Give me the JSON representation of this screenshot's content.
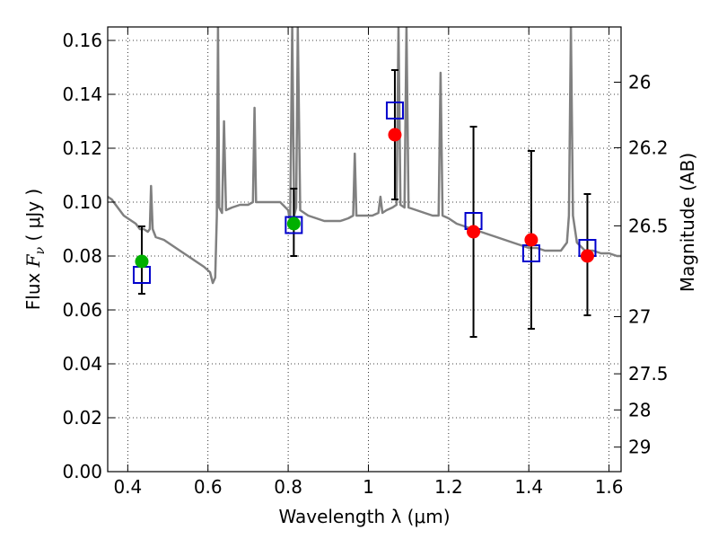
{
  "chart_data": {
    "type": "scatter",
    "title": "",
    "xlabel": "Wavelength  λ (μm)",
    "ylabel_left": {
      "prefix": "Flux ",
      "symbol": "F",
      "subscript": "ν",
      "suffix": "  ( μJy )"
    },
    "ylabel_right": "Magnitude (AB)",
    "xlim": [
      0.35,
      1.63
    ],
    "ylim": [
      0.0,
      0.165
    ],
    "grid": true,
    "grid_style": "dotted",
    "x_ticks": [
      {
        "value": 0.4,
        "label": "0.4"
      },
      {
        "value": 0.6,
        "label": "0.6"
      },
      {
        "value": 0.8,
        "label": "0.8"
      },
      {
        "value": 1.0,
        "label": "1"
      },
      {
        "value": 1.2,
        "label": "1.2"
      },
      {
        "value": 1.4,
        "label": "1.4"
      },
      {
        "value": 1.6,
        "label": "1.6"
      }
    ],
    "y_ticks": [
      {
        "value": 0.0,
        "label": "0.00"
      },
      {
        "value": 0.02,
        "label": "0.02"
      },
      {
        "value": 0.04,
        "label": "0.04"
      },
      {
        "value": 0.06,
        "label": "0.06"
      },
      {
        "value": 0.08,
        "label": "0.08"
      },
      {
        "value": 0.1,
        "label": "0.10"
      },
      {
        "value": 0.12,
        "label": "0.12"
      },
      {
        "value": 0.14,
        "label": "0.14"
      },
      {
        "value": 0.16,
        "label": "0.16"
      }
    ],
    "right_ticks": [
      {
        "label": "26",
        "flux": 0.1445
      },
      {
        "label": "26.2",
        "flux": 0.1202
      },
      {
        "label": "26.5",
        "flux": 0.0912
      },
      {
        "label": "27",
        "flux": 0.0575
      },
      {
        "label": "27.5",
        "flux": 0.0363
      },
      {
        "label": "28",
        "flux": 0.0229
      },
      {
        "label": "29",
        "flux": 0.0091
      }
    ],
    "observed": {
      "detections": [
        {
          "x": 0.435,
          "y": 0.078,
          "yerr_low": 0.066,
          "yerr_high": 0.091,
          "color": "#00b000"
        },
        {
          "x": 0.814,
          "y": 0.092,
          "yerr_low": 0.08,
          "yerr_high": 0.105,
          "color": "#00b000"
        }
      ],
      "non_detections": [
        {
          "x": 1.066,
          "y": 0.125,
          "yerr_low": 0.101,
          "yerr_high": 0.149,
          "color": "#ff0000"
        },
        {
          "x": 1.262,
          "y": 0.089,
          "yerr_low": 0.05,
          "yerr_high": 0.128,
          "color": "#ff0000"
        },
        {
          "x": 1.406,
          "y": 0.086,
          "yerr_low": 0.053,
          "yerr_high": 0.119,
          "color": "#ff0000"
        },
        {
          "x": 1.546,
          "y": 0.08,
          "yerr_low": 0.058,
          "yerr_high": 0.103,
          "color": "#ff0000"
        }
      ]
    },
    "model_photometry": {
      "color": "#0000cc",
      "points": [
        {
          "x": 0.435,
          "y": 0.073
        },
        {
          "x": 0.814,
          "y": 0.0915
        },
        {
          "x": 1.066,
          "y": 0.134
        },
        {
          "x": 1.262,
          "y": 0.093
        },
        {
          "x": 1.406,
          "y": 0.081
        },
        {
          "x": 1.546,
          "y": 0.083
        }
      ]
    },
    "model_spectrum": {
      "color": "#808080",
      "points": [
        [
          0.35,
          0.102
        ],
        [
          0.36,
          0.101
        ],
        [
          0.37,
          0.099
        ],
        [
          0.38,
          0.097
        ],
        [
          0.39,
          0.095
        ],
        [
          0.4,
          0.094
        ],
        [
          0.41,
          0.093
        ],
        [
          0.42,
          0.092
        ],
        [
          0.43,
          0.09
        ],
        [
          0.44,
          0.09
        ],
        [
          0.45,
          0.089
        ],
        [
          0.455,
          0.09
        ],
        [
          0.458,
          0.106
        ],
        [
          0.462,
          0.09
        ],
        [
          0.47,
          0.087
        ],
        [
          0.49,
          0.086
        ],
        [
          0.51,
          0.084
        ],
        [
          0.53,
          0.082
        ],
        [
          0.55,
          0.08
        ],
        [
          0.57,
          0.078
        ],
        [
          0.59,
          0.076
        ],
        [
          0.605,
          0.074
        ],
        [
          0.612,
          0.07
        ],
        [
          0.618,
          0.072
        ],
        [
          0.622,
          0.095
        ],
        [
          0.625,
          0.165
        ],
        [
          0.628,
          0.098
        ],
        [
          0.635,
          0.096
        ],
        [
          0.64,
          0.13
        ],
        [
          0.645,
          0.097
        ],
        [
          0.66,
          0.098
        ],
        [
          0.68,
          0.099
        ],
        [
          0.7,
          0.099
        ],
        [
          0.712,
          0.1
        ],
        [
          0.716,
          0.135
        ],
        [
          0.72,
          0.1
        ],
        [
          0.74,
          0.1
        ],
        [
          0.76,
          0.1
        ],
        [
          0.78,
          0.1
        ],
        [
          0.8,
          0.097
        ],
        [
          0.805,
          0.093
        ],
        [
          0.81,
          0.165
        ],
        [
          0.815,
          0.095
        ],
        [
          0.82,
          0.098
        ],
        [
          0.824,
          0.165
        ],
        [
          0.83,
          0.097
        ],
        [
          0.85,
          0.095
        ],
        [
          0.87,
          0.094
        ],
        [
          0.89,
          0.093
        ],
        [
          0.91,
          0.093
        ],
        [
          0.93,
          0.093
        ],
        [
          0.95,
          0.094
        ],
        [
          0.962,
          0.095
        ],
        [
          0.966,
          0.118
        ],
        [
          0.97,
          0.095
        ],
        [
          0.99,
          0.095
        ],
        [
          1.01,
          0.095
        ],
        [
          1.025,
          0.096
        ],
        [
          1.03,
          0.102
        ],
        [
          1.035,
          0.096
        ],
        [
          1.045,
          0.097
        ],
        [
          1.06,
          0.098
        ],
        [
          1.07,
          0.099
        ],
        [
          1.075,
          0.165
        ],
        [
          1.08,
          0.099
        ],
        [
          1.09,
          0.098
        ],
        [
          1.095,
          0.165
        ],
        [
          1.1,
          0.098
        ],
        [
          1.12,
          0.097
        ],
        [
          1.14,
          0.096
        ],
        [
          1.16,
          0.095
        ],
        [
          1.175,
          0.095
        ],
        [
          1.18,
          0.148
        ],
        [
          1.185,
          0.095
        ],
        [
          1.2,
          0.094
        ],
        [
          1.22,
          0.092
        ],
        [
          1.24,
          0.091
        ],
        [
          1.26,
          0.09
        ],
        [
          1.28,
          0.089
        ],
        [
          1.3,
          0.088
        ],
        [
          1.32,
          0.087
        ],
        [
          1.34,
          0.086
        ],
        [
          1.36,
          0.085
        ],
        [
          1.38,
          0.084
        ],
        [
          1.4,
          0.083
        ],
        [
          1.42,
          0.083
        ],
        [
          1.44,
          0.082
        ],
        [
          1.46,
          0.082
        ],
        [
          1.48,
          0.082
        ],
        [
          1.495,
          0.085
        ],
        [
          1.5,
          0.095
        ],
        [
          1.505,
          0.165
        ],
        [
          1.51,
          0.095
        ],
        [
          1.52,
          0.085
        ],
        [
          1.54,
          0.082
        ],
        [
          1.56,
          0.082
        ],
        [
          1.58,
          0.081
        ],
        [
          1.6,
          0.081
        ],
        [
          1.62,
          0.08
        ],
        [
          1.63,
          0.08
        ]
      ]
    }
  }
}
